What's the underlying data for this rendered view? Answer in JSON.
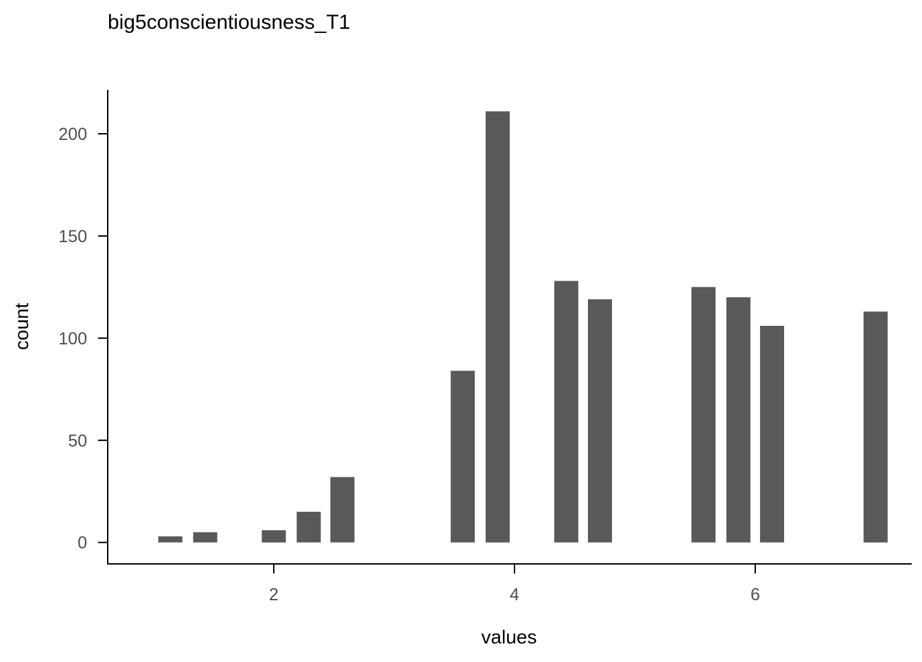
{
  "chart_data": {
    "type": "bar",
    "title": "big5conscientiousness_T1",
    "xlabel": "values",
    "ylabel": "count",
    "x": [
      1.14,
      1.43,
      2.0,
      2.29,
      2.57,
      3.57,
      3.86,
      4.43,
      4.71,
      5.57,
      5.86,
      6.14,
      7.0
    ],
    "values": [
      3,
      5,
      6,
      15,
      32,
      84,
      211,
      128,
      119,
      125,
      120,
      106,
      113
    ],
    "bar_width": 0.2,
    "xlim": [
      0.62,
      7.3
    ],
    "ylim": [
      -10.5,
      221.5
    ],
    "xticks": [
      2,
      4,
      6
    ],
    "yticks": [
      0,
      50,
      100,
      150,
      200
    ],
    "grid": false,
    "bar_color": "#595959",
    "axis_color": "#000000",
    "tick_label_color": "#4d4d4d"
  }
}
